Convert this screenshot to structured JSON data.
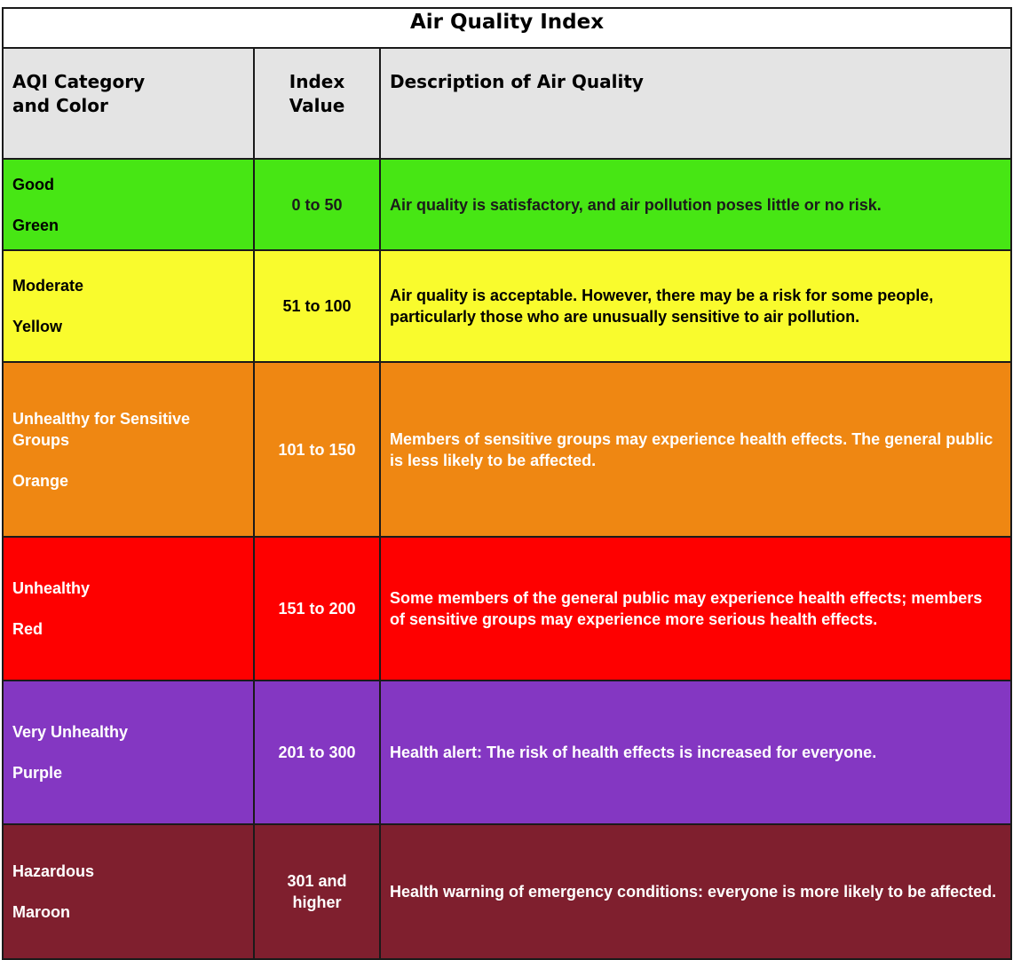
{
  "title": "Air Quality Index",
  "header": [
    "AQI Category and Color",
    "Index Value",
    "Description of Air Quality"
  ],
  "rows": [
    {
      "category": "Good",
      "color": "Green",
      "index": "0 to 50",
      "description": "Air quality is satisfactory, and air pollution poses little or no risk."
    },
    {
      "category": "Moderate",
      "color": "Yellow",
      "index": "51 to 100",
      "description": "Air quality is acceptable. However, there may be a risk for some people, particularly those who are unusually sensitive to air pollution."
    },
    {
      "category": "Unhealthy for Sensitive Groups",
      "color": "Orange",
      "index": "101 to 150",
      "description": "Members of sensitive groups may experience health effects. The general public is less likely to be affected."
    },
    {
      "category": "Unhealthy",
      "color": "Red",
      "index": "151 to 200",
      "description": "Some members of the general public may experience health effects; members of sensitive groups may experience more serious health effects."
    },
    {
      "category": "Very Unhealthy",
      "color": "Purple",
      "index": "201 to 300",
      "description": "Health alert: The risk of health effects is increased for everyone."
    },
    {
      "category": "Hazardous",
      "color": "Maroon",
      "index": "301 and higher",
      "description": "Health warning of emergency conditions: everyone is more likely to be affected."
    }
  ]
}
